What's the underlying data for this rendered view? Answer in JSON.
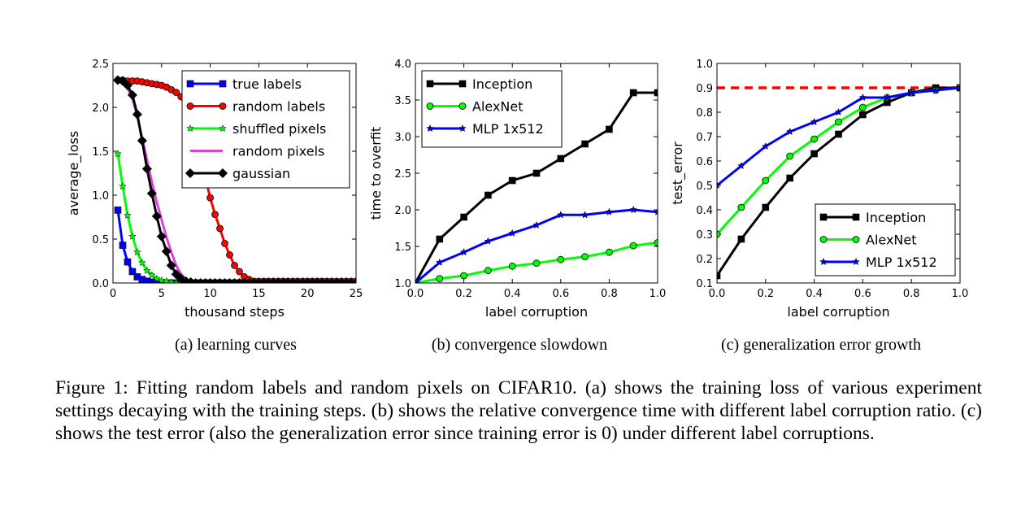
{
  "caption": "Figure 1: Fitting random labels and random pixels on CIFAR10. (a) shows the training loss of various experiment settings decaying with the training steps. (b) shows the relative convergence time with different label corruption ratio. (c) shows the test error (also the generalization error since training error is 0) under different label corruptions.",
  "chart_data": [
    {
      "type": "line",
      "subcaption": "(a) learning curves",
      "xlabel": "thousand steps",
      "ylabel": "average_loss",
      "xlim": [
        0,
        25
      ],
      "ylim": [
        0,
        2.5
      ],
      "xticks": [
        "0",
        "5",
        "10",
        "15",
        "20",
        "25"
      ],
      "yticks": [
        "0.0",
        "0.5",
        "1.0",
        "1.5",
        "2.0",
        "2.5"
      ],
      "legend": "top-right",
      "series": [
        {
          "name": "true labels",
          "color": "#0000ff",
          "marker": "square",
          "x": [
            0.5,
            1,
            1.5,
            2,
            2.5,
            3,
            3.5,
            4,
            4.5,
            5,
            5.5,
            6,
            6.5,
            7,
            7.5,
            8,
            8.5,
            9,
            9.5,
            10,
            10.5,
            11,
            11.5,
            12,
            12.5,
            13,
            13.5,
            14,
            14.5,
            15,
            15.5,
            16,
            16.5,
            17,
            17.5,
            18,
            18.5,
            19,
            19.5,
            20,
            20.5,
            21,
            21.5,
            22,
            22.5,
            23,
            23.5,
            24,
            24.5,
            25
          ],
          "y": [
            0.83,
            0.43,
            0.24,
            0.13,
            0.07,
            0.04,
            0.02,
            0.01,
            0.01,
            0,
            0,
            0,
            0,
            0,
            0,
            0,
            0,
            0,
            0,
            0,
            0,
            0,
            0,
            0,
            0,
            0,
            0,
            0,
            0,
            0,
            0,
            0,
            0,
            0,
            0,
            0,
            0,
            0,
            0,
            0,
            0,
            0,
            0,
            0,
            0,
            0,
            0,
            0,
            0,
            0
          ]
        },
        {
          "name": "random labels",
          "color": "#ff0000",
          "marker": "circle",
          "x": [
            0.5,
            1,
            1.5,
            2,
            2.5,
            3,
            3.5,
            4,
            4.5,
            5,
            5.5,
            6,
            6.5,
            7,
            7.5,
            8,
            8.5,
            9,
            9.5,
            10,
            10.5,
            11,
            11.5,
            12,
            12.5,
            13,
            13.5,
            14,
            14.5,
            15,
            15.5,
            16,
            16.5,
            17,
            17.5,
            18,
            18.5,
            19,
            19.5,
            20,
            20.5,
            21,
            21.5,
            22,
            22.5,
            23,
            23.5,
            24,
            24.5,
            25
          ],
          "y": [
            2.31,
            2.31,
            2.3,
            2.3,
            2.3,
            2.29,
            2.28,
            2.27,
            2.26,
            2.25,
            2.23,
            2.2,
            2.17,
            2.12,
            2.05,
            1.93,
            1.75,
            1.5,
            1.2,
            0.97,
            0.78,
            0.62,
            0.45,
            0.32,
            0.2,
            0.13,
            0.07,
            0.04,
            0.02,
            0.02,
            0.02,
            0.02,
            0.02,
            0.02,
            0.02,
            0.02,
            0.02,
            0.02,
            0.02,
            0.02,
            0.02,
            0.02,
            0.02,
            0.02,
            0.02,
            0.02,
            0.02,
            0.02,
            0.02,
            0.02
          ]
        },
        {
          "name": "shuffled pixels",
          "color": "#00ff00",
          "marker": "star",
          "x": [
            0.5,
            1,
            1.5,
            2,
            2.5,
            3,
            3.5,
            4,
            4.5,
            5,
            5.5,
            6,
            6.5,
            7,
            7.5,
            8,
            8.5,
            9,
            9.5,
            10,
            10.5,
            11,
            11.5,
            12,
            12.5,
            13,
            13.5,
            14,
            14.5,
            15,
            15.5,
            16,
            16.5,
            17,
            17.5,
            18,
            18.5,
            19,
            19.5,
            20,
            20.5,
            21,
            21.5,
            22,
            22.5,
            23,
            23.5,
            24,
            24.5,
            25
          ],
          "y": [
            1.47,
            1.1,
            0.77,
            0.53,
            0.35,
            0.23,
            0.14,
            0.09,
            0.05,
            0.03,
            0.02,
            0.01,
            0,
            0,
            0,
            0,
            0,
            0,
            0,
            0,
            0,
            0,
            0,
            0,
            0,
            0,
            0,
            0,
            0,
            0,
            0,
            0,
            0,
            0,
            0,
            0,
            0,
            0,
            0,
            0,
            0,
            0,
            0,
            0,
            0,
            0,
            0,
            0,
            0,
            0
          ]
        },
        {
          "name": "random pixels",
          "color": "#e040e0",
          "marker": "none",
          "x": [
            0.5,
            1,
            1.5,
            2,
            2.5,
            3,
            3.5,
            4,
            4.5,
            5,
            5.5,
            6,
            6.5,
            7,
            7.5,
            8,
            8.5,
            9,
            9.5,
            10,
            12,
            15,
            20,
            25
          ],
          "y": [
            2.3,
            2.28,
            2.22,
            2.1,
            1.9,
            1.65,
            1.4,
            1.15,
            0.92,
            0.72,
            0.52,
            0.35,
            0.2,
            0.1,
            0.04,
            0.01,
            0,
            0,
            0,
            0,
            0,
            0,
            0,
            0
          ]
        },
        {
          "name": "gaussian",
          "color": "#000000",
          "marker": "diamond",
          "x": [
            0.5,
            1,
            1.5,
            2,
            2.5,
            3,
            3.5,
            4,
            4.5,
            5,
            5.5,
            6,
            6.5,
            7,
            7.5,
            8,
            8.5,
            9,
            9.5,
            10,
            10.5,
            11,
            11.5,
            12,
            12.5,
            13,
            13.5,
            14,
            14.5,
            15,
            15.5,
            16,
            16.5,
            17,
            17.5,
            18,
            18.5,
            19,
            19.5,
            20,
            20.5,
            21,
            21.5,
            22,
            22.5,
            23,
            23.5,
            24,
            24.5,
            25
          ],
          "y": [
            2.31,
            2.3,
            2.25,
            2.14,
            1.92,
            1.62,
            1.3,
            1.02,
            0.76,
            0.53,
            0.36,
            0.2,
            0.1,
            0.05,
            0.02,
            0.01,
            0,
            0,
            0,
            0,
            0,
            0,
            0,
            0,
            0,
            0,
            0,
            0,
            0,
            0,
            0,
            0,
            0,
            0,
            0,
            0,
            0,
            0,
            0,
            0,
            0,
            0,
            0,
            0,
            0,
            0,
            0,
            0,
            0,
            0
          ]
        }
      ]
    },
    {
      "type": "line",
      "subcaption": "(b) convergence slowdown",
      "xlabel": "label corruption",
      "ylabel": "time to overfit",
      "xlim": [
        0,
        1
      ],
      "ylim": [
        1,
        4
      ],
      "xticks": [
        "0.0",
        "0.2",
        "0.4",
        "0.6",
        "0.8",
        "1.0"
      ],
      "yticks": [
        "1.0",
        "1.5",
        "2.0",
        "2.5",
        "3.0",
        "3.5",
        "4.0"
      ],
      "legend": "top-left",
      "series": [
        {
          "name": "Inception",
          "color": "#000000",
          "marker": "square",
          "x": [
            0,
            0.1,
            0.2,
            0.3,
            0.4,
            0.5,
            0.6,
            0.7,
            0.8,
            0.9,
            1.0
          ],
          "y": [
            1.0,
            1.6,
            1.9,
            2.2,
            2.4,
            2.5,
            2.7,
            2.9,
            3.1,
            3.6,
            3.6
          ]
        },
        {
          "name": "AlexNet",
          "color": "#00ff00",
          "marker": "circle",
          "x": [
            0,
            0.1,
            0.2,
            0.3,
            0.4,
            0.5,
            0.6,
            0.7,
            0.8,
            0.9,
            1.0
          ],
          "y": [
            1.0,
            1.06,
            1.1,
            1.17,
            1.23,
            1.27,
            1.32,
            1.36,
            1.42,
            1.51,
            1.55
          ]
        },
        {
          "name": "MLP 1x512",
          "color": "#0000ff",
          "marker": "star",
          "x": [
            0,
            0.1,
            0.2,
            0.3,
            0.4,
            0.5,
            0.6,
            0.7,
            0.8,
            0.9,
            1.0
          ],
          "y": [
            1.0,
            1.28,
            1.42,
            1.57,
            1.68,
            1.79,
            1.93,
            1.93,
            1.97,
            2.0,
            1.97
          ]
        }
      ]
    },
    {
      "type": "line",
      "subcaption": "(c) generalization error growth",
      "xlabel": "label corruption",
      "ylabel": "test_error",
      "xlim": [
        0,
        1
      ],
      "ylim": [
        0.1,
        1.0
      ],
      "xticks": [
        "0.0",
        "0.2",
        "0.4",
        "0.6",
        "0.8",
        "1.0"
      ],
      "yticks": [
        "0.1",
        "0.2",
        "0.3",
        "0.4",
        "0.5",
        "0.6",
        "0.7",
        "0.8",
        "0.9",
        "1.0"
      ],
      "legend": "bottom-right",
      "reference_line": {
        "y": 0.9,
        "color": "#ff0000",
        "style": "dashed"
      },
      "series": [
        {
          "name": "Inception",
          "color": "#000000",
          "marker": "square",
          "x": [
            0,
            0.1,
            0.2,
            0.3,
            0.4,
            0.5,
            0.6,
            0.7,
            0.8,
            0.9,
            1.0
          ],
          "y": [
            0.13,
            0.28,
            0.41,
            0.53,
            0.63,
            0.71,
            0.79,
            0.84,
            0.88,
            0.9,
            0.9
          ]
        },
        {
          "name": "AlexNet",
          "color": "#00ff00",
          "marker": "circle",
          "x": [
            0,
            0.1,
            0.2,
            0.3,
            0.4,
            0.5,
            0.6,
            0.7,
            0.8,
            0.9,
            1.0
          ],
          "y": [
            0.3,
            0.41,
            0.52,
            0.62,
            0.69,
            0.76,
            0.82,
            0.86,
            0.88,
            0.89,
            0.9
          ]
        },
        {
          "name": "MLP 1x512",
          "color": "#0000ff",
          "marker": "star",
          "x": [
            0,
            0.1,
            0.2,
            0.3,
            0.4,
            0.5,
            0.6,
            0.7,
            0.8,
            0.9,
            1.0
          ],
          "y": [
            0.5,
            0.58,
            0.66,
            0.72,
            0.76,
            0.8,
            0.86,
            0.86,
            0.88,
            0.89,
            0.9
          ]
        }
      ]
    }
  ]
}
